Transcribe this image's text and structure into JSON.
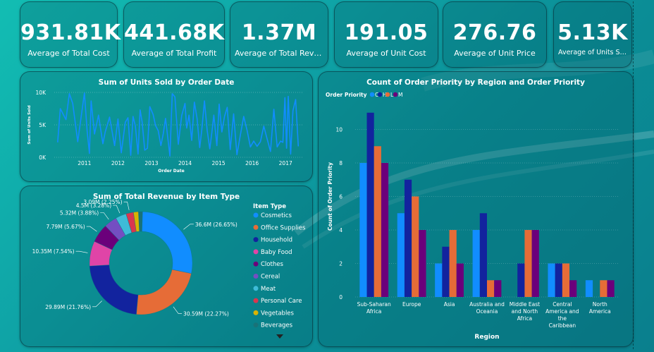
{
  "kpis": [
    {
      "value": "931.81K",
      "label": "Average of Total Cost"
    },
    {
      "value": "441.68K",
      "label": "Average of Total Profit"
    },
    {
      "value": "1.37M",
      "label": "Average of Total Reven..."
    },
    {
      "value": "191.05",
      "label": "Average of Unit Cost"
    },
    {
      "value": "276.76",
      "label": "Average of Unit Price"
    },
    {
      "value": "5.13K",
      "label": "Average of Units Sold"
    }
  ],
  "line_title": "Sum of Units Sold by Order Date",
  "pie_title": "Sum of Total Revenue by Item Type",
  "bar_title": "Count of Order Priority by Region and Order Priority",
  "colors": {
    "c": "#118dff",
    "h": "#12239e",
    "l": "#e66c37",
    "m": "#6b007b",
    "line": "#118dff"
  },
  "chart_data": [
    {
      "type": "line",
      "title": "Sum of Units Sold by Order Date",
      "xlabel": "Order Date",
      "ylabel": "Sum of Units Sold",
      "ylim": [
        0,
        10000
      ],
      "xlim": [
        2010.1,
        2017.5
      ],
      "xticks": [
        "2011",
        "2012",
        "2013",
        "2014",
        "2015",
        "2016",
        "2017"
      ],
      "yticks": [
        "0K",
        "5K",
        "10K"
      ],
      "series": [
        {
          "x": [
            2010.2,
            2010.28,
            2010.45,
            2010.55,
            2010.65,
            2010.8,
            2011.0,
            2011.08,
            2011.15,
            2011.2,
            2011.3,
            2011.42,
            2011.55,
            2011.62,
            2011.75,
            2011.9,
            2012.0,
            2012.1,
            2012.22,
            2012.3,
            2012.38,
            2012.45,
            2012.52,
            2012.6,
            2012.66,
            2012.72,
            2012.8,
            2012.88,
            2012.95,
            2013.05,
            2013.12,
            2013.2,
            2013.28,
            2013.35,
            2013.42,
            2013.55,
            2013.62,
            2013.7,
            2013.8,
            2013.9,
            2014.0,
            2014.05,
            2014.12,
            2014.2,
            2014.28,
            2014.36,
            2014.44,
            2014.5,
            2014.58,
            2014.66,
            2014.74,
            2014.8,
            2014.86,
            2014.95,
            2015.02,
            2015.1,
            2015.18,
            2015.26,
            2015.35,
            2015.45,
            2015.55,
            2015.65,
            2015.75,
            2015.85,
            2015.95,
            2016.05,
            2016.15,
            2016.25,
            2016.35,
            2016.45,
            2016.55,
            2016.65,
            2016.75,
            2016.85,
            2016.92,
            2016.98,
            2017.03,
            2017.08,
            2017.15,
            2017.22,
            2017.3,
            2017.38
          ],
          "y": [
            2300,
            7500,
            5800,
            9800,
            8300,
            2400,
            9900,
            4100,
            600,
            8700,
            3600,
            6500,
            2100,
            3900,
            6200,
            1800,
            5900,
            700,
            5400,
            6100,
            300,
            6300,
            4800,
            500,
            7300,
            5500,
            1100,
            1400,
            7800,
            6600,
            4900,
            4100,
            1800,
            3600,
            6000,
            200,
            9800,
            9300,
            2000,
            6400,
            8300,
            4500,
            6500,
            2600,
            8500,
            6000,
            1500,
            4200,
            8700,
            4200,
            1300,
            3800,
            6500,
            1800,
            8200,
            3900,
            6300,
            7700,
            1200,
            6700,
            400,
            3400,
            6300,
            4200,
            1600,
            2500,
            1700,
            2400,
            4800,
            2800,
            900,
            7400,
            1600,
            2500,
            2300,
            9200,
            1400,
            9400,
            500,
            7200,
            8900,
            1700
          ]
        }
      ]
    },
    {
      "type": "pie",
      "title": "Sum of Total Revenue by Item Type",
      "legend_title": "Item Type",
      "categories": [
        "Cosmetics",
        "Office Supplies",
        "Household",
        "Baby Food",
        "Clothes",
        "Cereal",
        "Meat",
        "Personal Care",
        "Vegetables",
        "Beverages"
      ],
      "values": [
        26.65,
        22.27,
        21.76,
        7.54,
        5.67,
        3.88,
        3.28,
        2.25,
        1.5,
        1.2
      ],
      "slice_labels": [
        "36.6M (26.65%)",
        "30.59M (22.27%)",
        "29.89M (21.76%)",
        "10.35M (7.54%)",
        "7.79M (5.67%)",
        "5.32M (3.88%)",
        "4.5M (3.28%)",
        "3.09M (2.25%)",
        "",
        ""
      ],
      "colors": [
        "#118dff",
        "#e66c37",
        "#12239e",
        "#e044a7",
        "#6b007b",
        "#744ec2",
        "#3ebcd8",
        "#d9364f",
        "#d9b300",
        "#197278"
      ]
    },
    {
      "type": "bar",
      "title": "Count of Order Priority by Region and Order Priority",
      "xlabel": "Region",
      "ylabel": "Count of Order Priority",
      "legend_title": "Order Priority",
      "ylim": [
        0,
        12
      ],
      "yticks": [
        "0",
        "2",
        "4",
        "6",
        "8",
        "10"
      ],
      "categories": [
        [
          "Sub-Saharan",
          "Africa"
        ],
        [
          "Europe"
        ],
        [
          "Asia"
        ],
        [
          "Australia and",
          "Oceania"
        ],
        [
          "Middle East",
          "and North",
          "Africa"
        ],
        [
          "Central",
          "America and",
          "the",
          "Caribbean"
        ],
        [
          "North",
          "America"
        ]
      ],
      "series": [
        {
          "name": "C",
          "values": [
            8,
            5,
            2,
            4,
            0,
            2,
            1
          ]
        },
        {
          "name": "H",
          "values": [
            11,
            7,
            3,
            5,
            2,
            2,
            0
          ]
        },
        {
          "name": "L",
          "values": [
            9,
            6,
            4,
            1,
            4,
            2,
            1
          ]
        },
        {
          "name": "M",
          "values": [
            8,
            4,
            2,
            1,
            4,
            1,
            1
          ]
        }
      ]
    }
  ]
}
